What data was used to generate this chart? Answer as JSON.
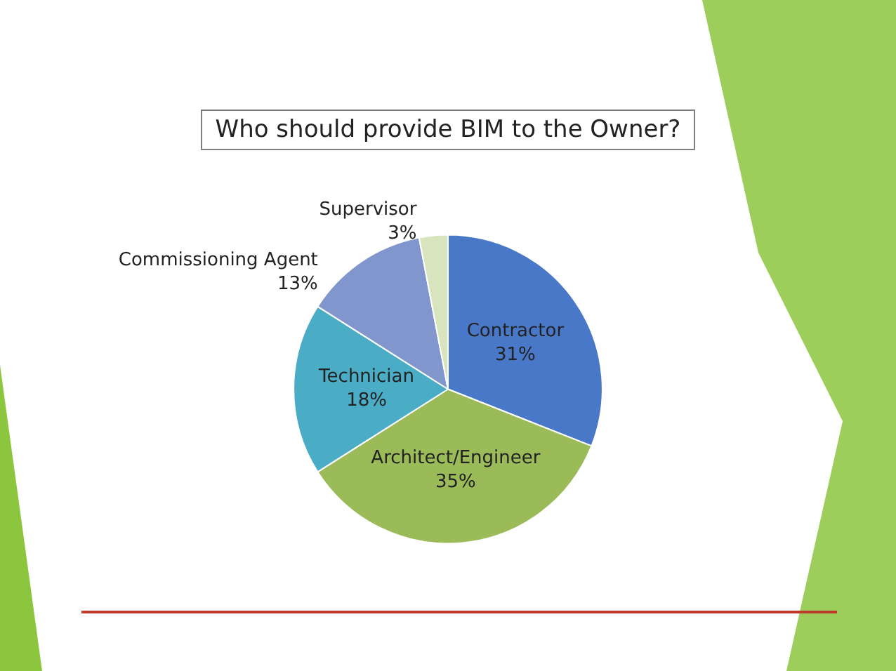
{
  "chart_data": {
    "type": "pie",
    "title": "Who should provide BIM to the Owner?",
    "categories": [
      "Contractor",
      "Architect/Engineer",
      "Technician",
      "Commissioning Agent",
      "Supervisor"
    ],
    "values": [
      31,
      35,
      18,
      13,
      3
    ],
    "value_labels": [
      "31%",
      "35%",
      "18%",
      "13%",
      "3%"
    ],
    "colors": [
      "#4a78c8",
      "#9bbb59",
      "#4bacc6",
      "#8096cc",
      "#d7e4bd"
    ],
    "legend": false
  }
}
